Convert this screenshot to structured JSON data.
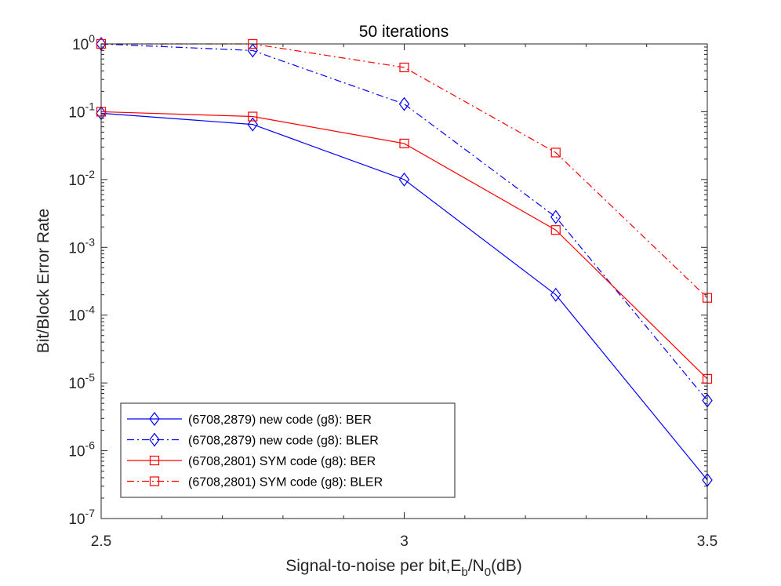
{
  "chart_data": {
    "type": "line",
    "title": "50 iterations",
    "xlabel": {
      "main": "Signal-to-noise per bit,E",
      "sub1": "b",
      "mid": "/N",
      "sub2": "0",
      "tail": "(dB)"
    },
    "ylabel": "Bit/Block Error Rate",
    "xlim": [
      2.5,
      3.5
    ],
    "ylim_exponent": [
      -7,
      0
    ],
    "yscale": "log",
    "x_ticks": [
      "2.5",
      "3",
      "3.5"
    ],
    "y_ticks": [
      {
        "base": "10",
        "exp": "0"
      },
      {
        "base": "10",
        "exp": "-1"
      },
      {
        "base": "10",
        "exp": "-2"
      },
      {
        "base": "10",
        "exp": "-3"
      },
      {
        "base": "10",
        "exp": "-4"
      },
      {
        "base": "10",
        "exp": "-5"
      },
      {
        "base": "10",
        "exp": "-6"
      },
      {
        "base": "10",
        "exp": "-7"
      }
    ],
    "legend_position": "bottom-left",
    "series": [
      {
        "name": "(6708,2879) new code (g8): BER",
        "color": "#0000ff",
        "style": "solid",
        "marker": "diamond",
        "x": [
          2.5,
          2.75,
          3.0,
          3.25,
          3.5
        ],
        "y": [
          0.095,
          0.065,
          0.01,
          0.0002,
          3.7e-07
        ]
      },
      {
        "name": "(6708,2879) new code (g8): BLER",
        "color": "#0000ff",
        "style": "dashdot",
        "marker": "diamond",
        "x": [
          2.5,
          2.75,
          3.0,
          3.25,
          3.5
        ],
        "y": [
          1.0,
          0.8,
          0.13,
          0.0028,
          5.5e-06
        ]
      },
      {
        "name": "(6708,2801) SYM code (g8): BER",
        "color": "#ff0000",
        "style": "solid",
        "marker": "square",
        "x": [
          2.5,
          2.75,
          3.0,
          3.25,
          3.5
        ],
        "y": [
          0.1,
          0.085,
          0.034,
          0.0018,
          1.15e-05
        ]
      },
      {
        "name": "(6708,2801) SYM code (g8): BLER",
        "color": "#ff0000",
        "style": "dashdot",
        "marker": "square",
        "x": [
          2.5,
          2.75,
          3.0,
          3.25,
          3.5
        ],
        "y": [
          1.0,
          1.0,
          0.45,
          0.025,
          0.00018
        ]
      }
    ]
  }
}
